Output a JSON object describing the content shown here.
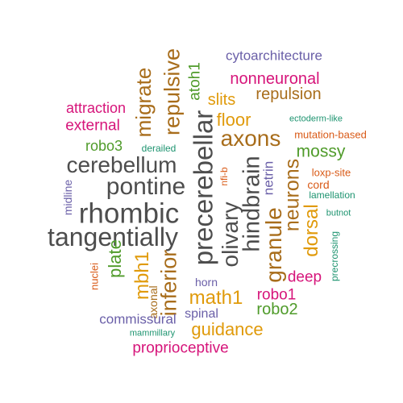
{
  "colors": {
    "gray": "#4d4d4d",
    "pink": "#d6147a",
    "purple": "#6a5fa8",
    "gold": "#e09a0a",
    "olive": "#a86d1b",
    "green": "#4f9b2a",
    "teal": "#1e9470",
    "orange": "#d95a17"
  },
  "words": [
    {
      "text": "cytoarchitecture",
      "color": "purple"
    },
    {
      "text": "nonneuronal",
      "color": "pink"
    },
    {
      "text": "repulsion",
      "color": "olive"
    },
    {
      "text": "slits",
      "color": "gold"
    },
    {
      "text": "atoh1",
      "color": "green"
    },
    {
      "text": "repulsive",
      "color": "olive"
    },
    {
      "text": "migrate",
      "color": "olive"
    },
    {
      "text": "attraction",
      "color": "pink"
    },
    {
      "text": "external",
      "color": "pink"
    },
    {
      "text": "robo3",
      "color": "green"
    },
    {
      "text": "derailed",
      "color": "teal"
    },
    {
      "text": "floor",
      "color": "gold"
    },
    {
      "text": "ectoderm-like",
      "color": "teal"
    },
    {
      "text": "mutation-based",
      "color": "orange"
    },
    {
      "text": "axons",
      "color": "olive"
    },
    {
      "text": "mossy",
      "color": "green"
    },
    {
      "text": "cerebellum",
      "color": "gray"
    },
    {
      "text": "pontine",
      "color": "gray"
    },
    {
      "text": "precerebellar",
      "color": "gray"
    },
    {
      "text": "nfi-b",
      "color": "orange"
    },
    {
      "text": "hindbrain",
      "color": "gray"
    },
    {
      "text": "netrin",
      "color": "purple"
    },
    {
      "text": "loxp-site",
      "color": "orange"
    },
    {
      "text": "cord",
      "color": "orange"
    },
    {
      "text": "lamellation",
      "color": "teal"
    },
    {
      "text": "midline",
      "color": "purple"
    },
    {
      "text": "rhombic",
      "color": "gray"
    },
    {
      "text": "olivary",
      "color": "gray"
    },
    {
      "text": "neurons",
      "color": "olive"
    },
    {
      "text": "butnot",
      "color": "teal"
    },
    {
      "text": "tangentially",
      "color": "gray"
    },
    {
      "text": "granule",
      "color": "olive"
    },
    {
      "text": "dorsal",
      "color": "gold"
    },
    {
      "text": "precrossing",
      "color": "teal"
    },
    {
      "text": "plate",
      "color": "green"
    },
    {
      "text": "mbh1",
      "color": "gold"
    },
    {
      "text": "inferior",
      "color": "olive"
    },
    {
      "text": "nuclei",
      "color": "orange"
    },
    {
      "text": "deep",
      "color": "pink"
    },
    {
      "text": "horn",
      "color": "purple"
    },
    {
      "text": "axonal",
      "color": "olive"
    },
    {
      "text": "math1",
      "color": "gold"
    },
    {
      "text": "robo1",
      "color": "pink"
    },
    {
      "text": "robo2",
      "color": "green"
    },
    {
      "text": "spinal",
      "color": "purple"
    },
    {
      "text": "commissural",
      "color": "purple"
    },
    {
      "text": "guidance",
      "color": "gold"
    },
    {
      "text": "mammillary",
      "color": "teal"
    },
    {
      "text": "proprioceptive",
      "color": "pink"
    }
  ]
}
